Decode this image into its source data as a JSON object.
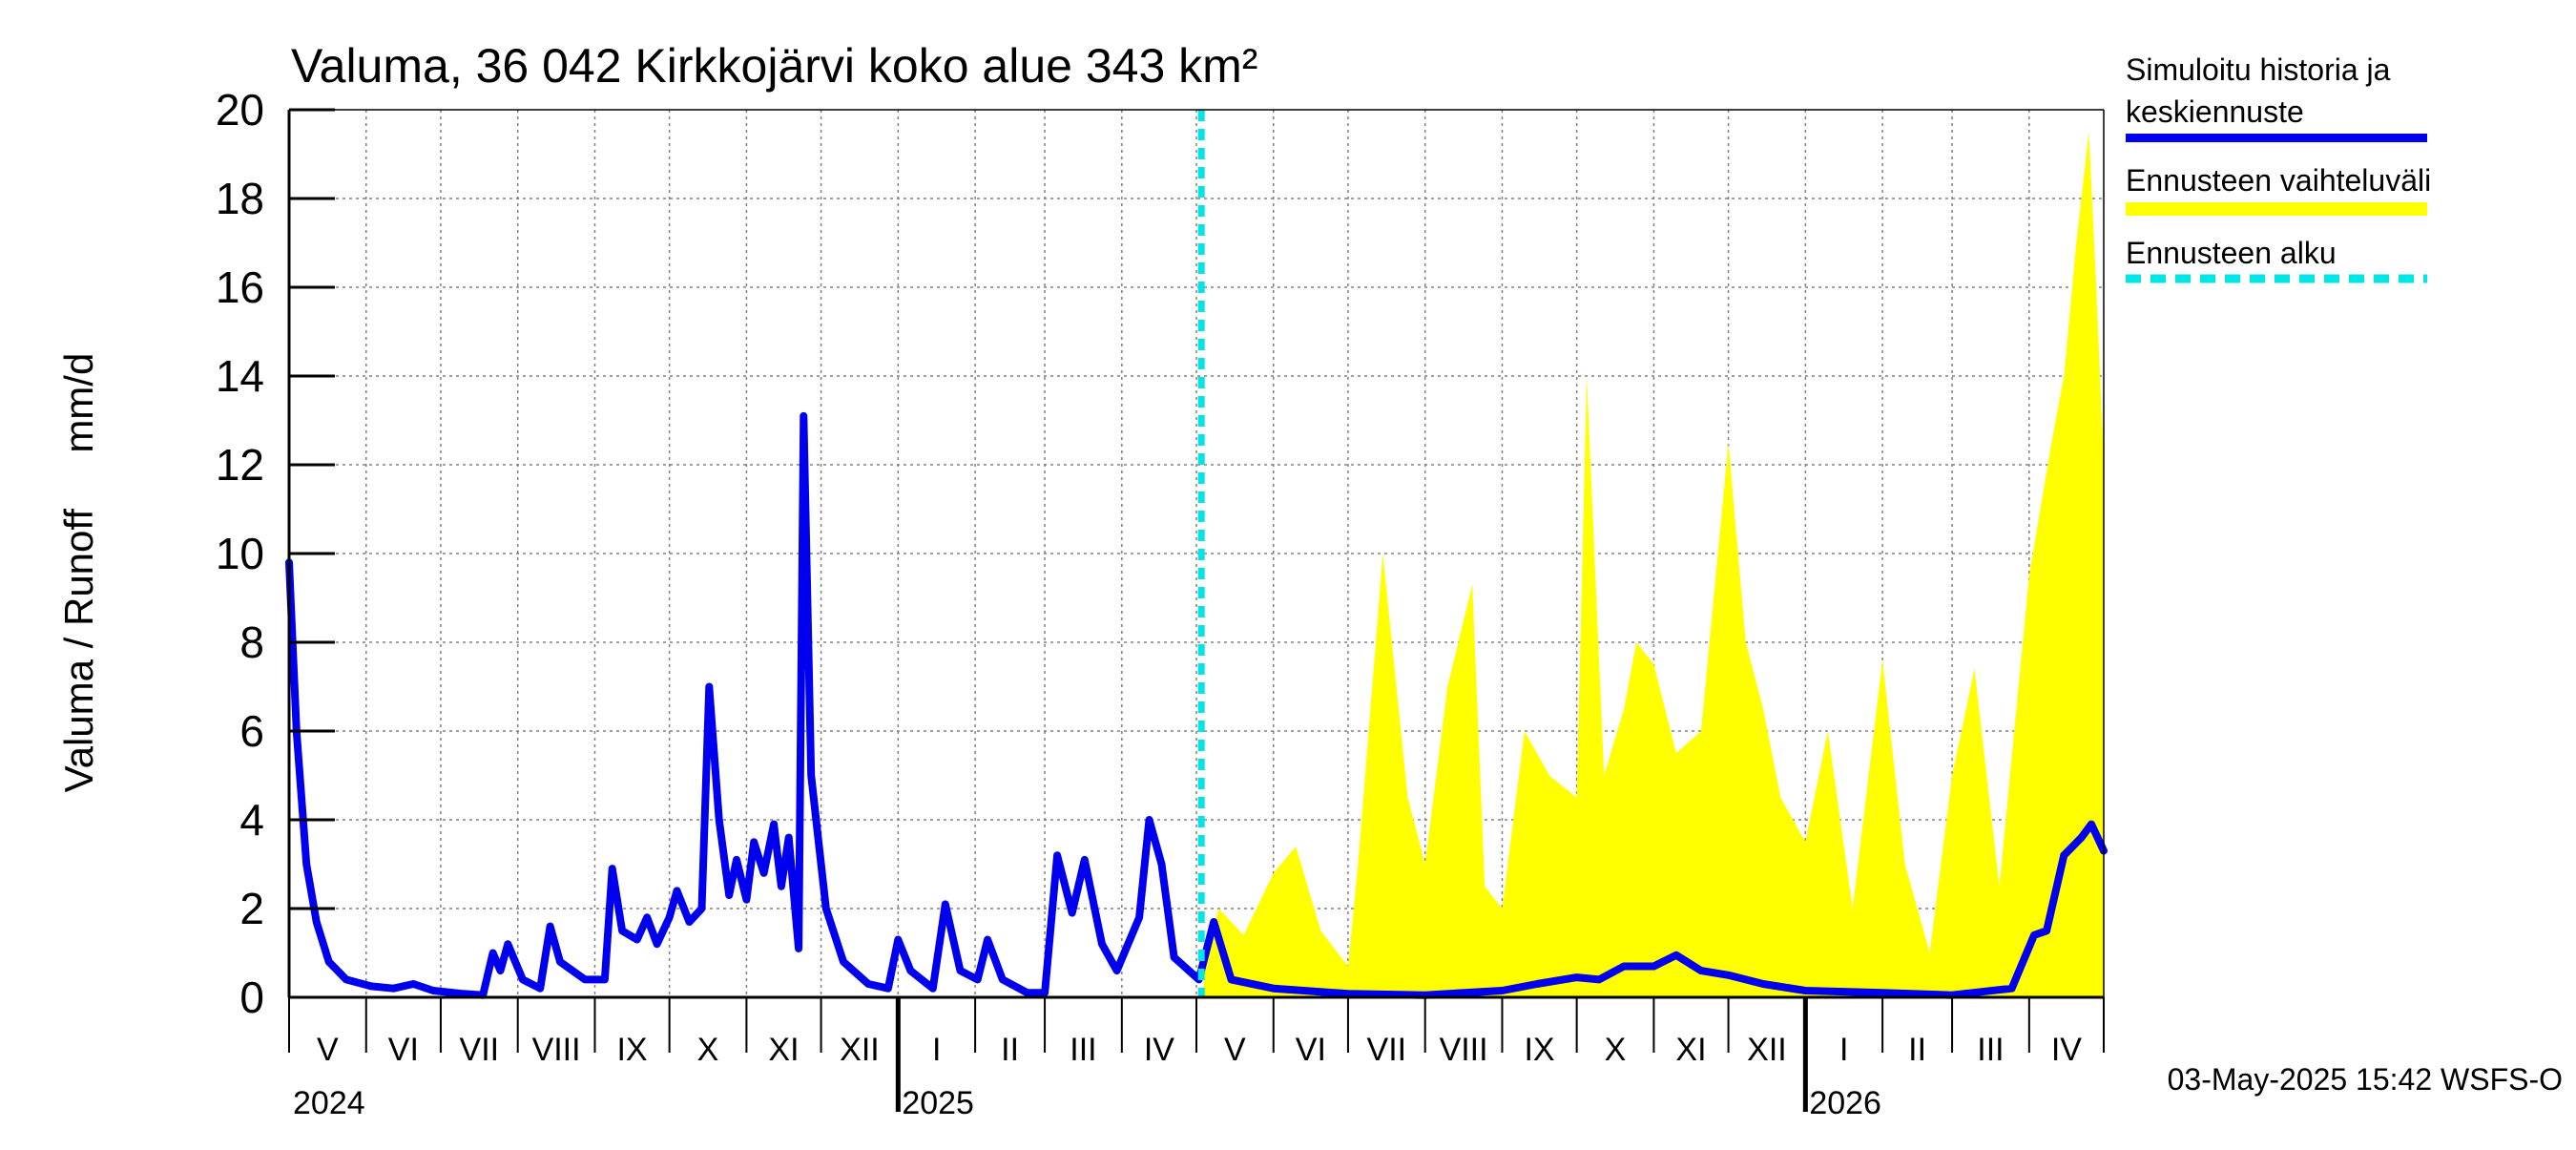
{
  "chart_data": {
    "type": "area",
    "title": "Valuma, 36 042 Kirkkojärvi koko alue 343 km²",
    "ylabel": "Valuma / Runoff     mm/d",
    "ylim": [
      0,
      20
    ],
    "yticks": [
      "0",
      "2",
      "4",
      "6",
      "8",
      "10",
      "12",
      "14",
      "16",
      "18",
      "20"
    ],
    "xlim": [
      "2024-05-01",
      "2026-05-01"
    ],
    "grid": true,
    "legend_position": "right",
    "legend": {
      "history": "Simuloitu historia ja keskiennuste",
      "history_line1": "Simuloitu historia ja",
      "history_line2": "keskiennuste",
      "range": "Ennusteen vaihteluväli",
      "start": "Ennusteen alku"
    },
    "month_labels": [
      "V",
      "VI",
      "VII",
      "VIII",
      "IX",
      "X",
      "XI",
      "XII",
      "I",
      "II",
      "III",
      "IV",
      "V",
      "VI",
      "VII",
      "VIII",
      "IX",
      "X",
      "XI",
      "XII",
      "I",
      "II",
      "III",
      "IV"
    ],
    "year_labels": [
      {
        "label": "2024",
        "date": "2024-05-01"
      },
      {
        "label": "2025",
        "date": "2025-01-01"
      },
      {
        "label": "2026",
        "date": "2026-01-01"
      }
    ],
    "forecast_start": "2025-05-03",
    "footer": "03-May-2025 15:42 WSFS-O",
    "colors": {
      "history": "#0000ee",
      "range": "#ffff00",
      "start": "#00e5e5",
      "grid": "#808080"
    },
    "series": [
      {
        "name": "Simuloitu historia ja keskiennuste",
        "points": [
          [
            "2024-05-01",
            9.8
          ],
          [
            "2024-05-04",
            6.0
          ],
          [
            "2024-05-08",
            3.0
          ],
          [
            "2024-05-12",
            1.7
          ],
          [
            "2024-05-17",
            0.8
          ],
          [
            "2024-05-24",
            0.4
          ],
          [
            "2024-06-03",
            0.25
          ],
          [
            "2024-06-12",
            0.2
          ],
          [
            "2024-06-20",
            0.3
          ],
          [
            "2024-06-28",
            0.15
          ],
          [
            "2024-07-10",
            0.08
          ],
          [
            "2024-07-18",
            0.05
          ],
          [
            "2024-07-22",
            1.0
          ],
          [
            "2024-07-25",
            0.6
          ],
          [
            "2024-07-28",
            1.2
          ],
          [
            "2024-08-03",
            0.4
          ],
          [
            "2024-08-10",
            0.2
          ],
          [
            "2024-08-14",
            1.6
          ],
          [
            "2024-08-18",
            0.8
          ],
          [
            "2024-08-28",
            0.4
          ],
          [
            "2024-09-05",
            0.4
          ],
          [
            "2024-09-08",
            2.9
          ],
          [
            "2024-09-12",
            1.5
          ],
          [
            "2024-09-18",
            1.3
          ],
          [
            "2024-09-22",
            1.8
          ],
          [
            "2024-09-26",
            1.2
          ],
          [
            "2024-10-01",
            1.8
          ],
          [
            "2024-10-04",
            2.4
          ],
          [
            "2024-10-09",
            1.7
          ],
          [
            "2024-10-14",
            2.0
          ],
          [
            "2024-10-17",
            7.0
          ],
          [
            "2024-10-21",
            4.0
          ],
          [
            "2024-10-25",
            2.3
          ],
          [
            "2024-10-28",
            3.1
          ],
          [
            "2024-11-01",
            2.2
          ],
          [
            "2024-11-04",
            3.5
          ],
          [
            "2024-11-08",
            2.8
          ],
          [
            "2024-11-12",
            3.9
          ],
          [
            "2024-11-15",
            2.5
          ],
          [
            "2024-11-18",
            3.6
          ],
          [
            "2024-11-22",
            1.1
          ],
          [
            "2024-11-24",
            13.1
          ],
          [
            "2024-11-27",
            5.0
          ],
          [
            "2024-12-03",
            2.0
          ],
          [
            "2024-12-10",
            0.8
          ],
          [
            "2024-12-20",
            0.3
          ],
          [
            "2024-12-28",
            0.2
          ],
          [
            "2025-01-01",
            1.3
          ],
          [
            "2025-01-06",
            0.6
          ],
          [
            "2025-01-15",
            0.2
          ],
          [
            "2025-01-20",
            2.1
          ],
          [
            "2025-01-26",
            0.6
          ],
          [
            "2025-02-02",
            0.4
          ],
          [
            "2025-02-06",
            1.3
          ],
          [
            "2025-02-12",
            0.4
          ],
          [
            "2025-02-22",
            0.1
          ],
          [
            "2025-03-01",
            0.1
          ],
          [
            "2025-03-06",
            3.2
          ],
          [
            "2025-03-12",
            1.9
          ],
          [
            "2025-03-17",
            3.1
          ],
          [
            "2025-03-24",
            1.2
          ],
          [
            "2025-03-30",
            0.6
          ],
          [
            "2025-04-08",
            1.8
          ],
          [
            "2025-04-12",
            4.0
          ],
          [
            "2025-04-17",
            3.0
          ],
          [
            "2025-04-22",
            0.9
          ],
          [
            "2025-04-28",
            0.6
          ],
          [
            "2025-05-02",
            0.4
          ],
          [
            "2025-05-08",
            1.7
          ],
          [
            "2025-05-15",
            0.4
          ],
          [
            "2025-06-01",
            0.2
          ],
          [
            "2025-07-01",
            0.08
          ],
          [
            "2025-08-01",
            0.05
          ],
          [
            "2025-09-01",
            0.15
          ],
          [
            "2025-09-15",
            0.3
          ],
          [
            "2025-10-01",
            0.45
          ],
          [
            "2025-10-10",
            0.4
          ],
          [
            "2025-10-20",
            0.7
          ],
          [
            "2025-11-01",
            0.7
          ],
          [
            "2025-11-10",
            0.95
          ],
          [
            "2025-11-20",
            0.6
          ],
          [
            "2025-12-01",
            0.5
          ],
          [
            "2025-12-15",
            0.3
          ],
          [
            "2026-01-01",
            0.15
          ],
          [
            "2026-02-01",
            0.1
          ],
          [
            "2026-03-01",
            0.05
          ],
          [
            "2026-03-25",
            0.2
          ],
          [
            "2026-04-03",
            1.4
          ],
          [
            "2026-04-08",
            1.5
          ],
          [
            "2026-04-15",
            3.2
          ],
          [
            "2026-04-22",
            3.6
          ],
          [
            "2026-04-26",
            3.9
          ],
          [
            "2026-05-01",
            3.3
          ]
        ]
      },
      {
        "name": "Ennusteen vaihteluväli",
        "points": [
          [
            "2025-05-04",
            0,
            0.8
          ],
          [
            "2025-05-10",
            0,
            2.0
          ],
          [
            "2025-05-20",
            0,
            1.4
          ],
          [
            "2025-06-01",
            0,
            2.8
          ],
          [
            "2025-06-10",
            0,
            3.4
          ],
          [
            "2025-06-20",
            0,
            1.5
          ],
          [
            "2025-07-01",
            0,
            0.7
          ],
          [
            "2025-07-05",
            0,
            3.0
          ],
          [
            "2025-07-15",
            0,
            10.0
          ],
          [
            "2025-07-25",
            0,
            4.5
          ],
          [
            "2025-08-01",
            0,
            3.0
          ],
          [
            "2025-08-10",
            0,
            7.0
          ],
          [
            "2025-08-20",
            0,
            9.3
          ],
          [
            "2025-08-25",
            0,
            2.5
          ],
          [
            "2025-09-01",
            0,
            2.0
          ],
          [
            "2025-09-10",
            0,
            6.0
          ],
          [
            "2025-09-20",
            0,
            5.0
          ],
          [
            "2025-10-01",
            0,
            4.5
          ],
          [
            "2025-10-05",
            0,
            14.0
          ],
          [
            "2025-10-12",
            0,
            5.0
          ],
          [
            "2025-10-20",
            0,
            6.5
          ],
          [
            "2025-10-25",
            0,
            8.0
          ],
          [
            "2025-11-01",
            0,
            7.5
          ],
          [
            "2025-11-10",
            0,
            5.5
          ],
          [
            "2025-11-20",
            0,
            6.0
          ],
          [
            "2025-12-01",
            0,
            12.5
          ],
          [
            "2025-12-08",
            0,
            8.0
          ],
          [
            "2025-12-15",
            0,
            6.5
          ],
          [
            "2025-12-22",
            0,
            4.5
          ],
          [
            "2026-01-01",
            0,
            3.5
          ],
          [
            "2026-01-10",
            0,
            6.0
          ],
          [
            "2026-01-20",
            0,
            2.0
          ],
          [
            "2026-02-01",
            0,
            7.6
          ],
          [
            "2026-02-10",
            0,
            3.0
          ],
          [
            "2026-02-20",
            0,
            1.0
          ],
          [
            "2026-03-01",
            0,
            5.0
          ],
          [
            "2026-03-10",
            0,
            7.4
          ],
          [
            "2026-03-20",
            0,
            2.5
          ],
          [
            "2026-04-01",
            0,
            9.5
          ],
          [
            "2026-04-10",
            0,
            12.5
          ],
          [
            "2026-04-15",
            0,
            14.0
          ],
          [
            "2026-04-20",
            0,
            17.0
          ],
          [
            "2026-04-25",
            0,
            19.5
          ],
          [
            "2026-04-28",
            0,
            16.0
          ],
          [
            "2026-05-01",
            0,
            12.0
          ]
        ]
      }
    ]
  }
}
